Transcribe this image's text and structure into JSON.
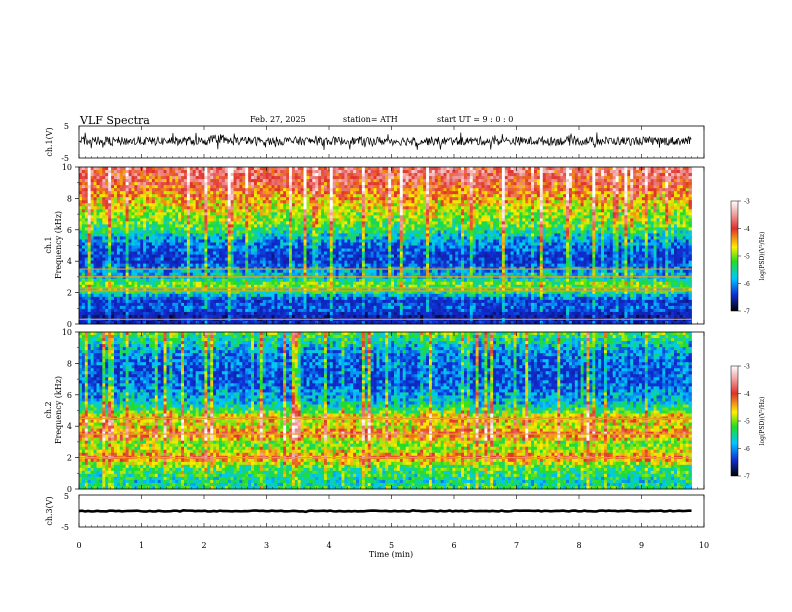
{
  "header": {
    "title": "VLF  Spectra",
    "date": "Feb. 27, 2025",
    "station": "station= ATH",
    "start": "start  UT  =    9  : 0  : 0"
  },
  "colorbar": {
    "label": "log(PSD)(V²/Hz)",
    "ticks": [
      "-3",
      "-4",
      "-5",
      "-6",
      "-7"
    ],
    "colors": [
      "#ffffff",
      "#e0302a",
      "#ffee00",
      "#22dd22",
      "#00c8ff",
      "#1030d8",
      "#000000"
    ]
  },
  "chart_data": [
    {
      "type": "line",
      "name": "ch.1 waveform",
      "ylabel": "ch.1(V)",
      "yticks": [
        "5",
        "-5"
      ],
      "ylim": [
        -5,
        5
      ],
      "x_range_min": [
        0,
        9.8
      ],
      "baseline": 0.3,
      "amplitude_range": [
        -2.5,
        3.0
      ]
    },
    {
      "type": "heatmap",
      "name": "ch.1 spectrogram",
      "ylabel": "ch.1\nFrequency  (kHz)",
      "ylabel_lines": [
        "ch.1",
        "Frequency  (kHz)"
      ],
      "yticks": [
        "0",
        "2",
        "4",
        "6",
        "8",
        "10"
      ],
      "ylim": [
        0,
        10
      ],
      "x_range_min": [
        0,
        9.8
      ],
      "zlim_logPSD": [
        -7,
        -3
      ],
      "profile_kHz": [
        0,
        0.5,
        1,
        1.5,
        2,
        2.5,
        3,
        3.5,
        4,
        4.5,
        5,
        5.5,
        6,
        6.5,
        7,
        7.5,
        8,
        8.5,
        9,
        9.5,
        10
      ],
      "profile_logPSD": [
        -6.3,
        -6.5,
        -6.0,
        -6.2,
        -5.3,
        -4.9,
        -5.6,
        -5.9,
        -6.3,
        -6.2,
        -6.0,
        -5.7,
        -5.3,
        -5.0,
        -4.9,
        -4.7,
        -4.5,
        -4.3,
        -4.1,
        -4.0,
        -3.9
      ],
      "lines_kHz": [
        0.3,
        2.1,
        2.3,
        3.0,
        3.5
      ]
    },
    {
      "type": "heatmap",
      "name": "ch.2 spectrogram",
      "ylabel": "ch.2\nFrequency  (kHz)",
      "ylabel_lines": [
        "ch.2",
        "Frequency  (kHz)"
      ],
      "yticks": [
        "0",
        "2",
        "4",
        "6",
        "8",
        "10"
      ],
      "ylim": [
        0,
        10
      ],
      "x_range_min": [
        0,
        9.8
      ],
      "zlim_logPSD": [
        -7,
        -3
      ],
      "profile_kHz": [
        0,
        0.5,
        1,
        1.5,
        2,
        2.5,
        3,
        3.5,
        4,
        4.5,
        5,
        5.5,
        6,
        6.5,
        7,
        7.5,
        8,
        8.5,
        9,
        9.5,
        10
      ],
      "profile_logPSD": [
        -5.2,
        -5.4,
        -5.2,
        -5.0,
        -4.2,
        -4.8,
        -4.9,
        -4.2,
        -4.8,
        -4.5,
        -5.2,
        -5.6,
        -5.8,
        -6.0,
        -6.1,
        -6.1,
        -6.0,
        -5.9,
        -5.7,
        -5.4,
        -5.1
      ],
      "lines_kHz": [
        2.0,
        3.5,
        4.5
      ]
    },
    {
      "type": "line",
      "name": "ch.3 waveform",
      "ylabel": "ch.3(V)",
      "yticks": [
        "5",
        "-5"
      ],
      "ylim": [
        -5,
        5
      ],
      "x_range_min": [
        0,
        9.8
      ],
      "baseline": 0.0,
      "amplitude_range": [
        -0.3,
        0.3
      ]
    }
  ],
  "xaxis": {
    "label": "Time  (min)",
    "ticks": [
      "0",
      "1",
      "2",
      "3",
      "4",
      "5",
      "6",
      "7",
      "8",
      "9",
      "10"
    ],
    "xlim": [
      0,
      10
    ]
  }
}
